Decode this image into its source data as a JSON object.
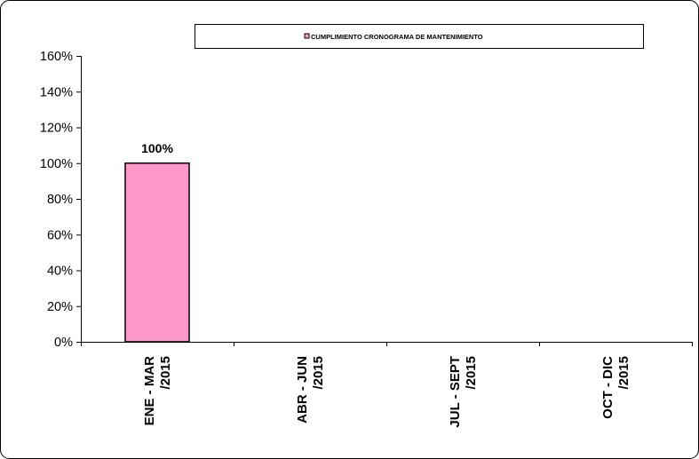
{
  "chart_data": {
    "type": "bar",
    "categories": [
      [
        "ENE - MAR",
        "/2015"
      ],
      [
        "ABR - JUN",
        "/2015"
      ],
      [
        "JUL - SEPT",
        "/2015"
      ],
      [
        "OCT - DIC",
        "/2015"
      ]
    ],
    "series": [
      {
        "name": "CUMPLIMIENTO CRONOGRAMA DE MANTENIMIENTO",
        "values": [
          1.0,
          null,
          null,
          null
        ],
        "data_labels": [
          "100%",
          "",
          "",
          ""
        ],
        "color": "#ff99cc"
      }
    ],
    "yticks": [
      "0%",
      "20%",
      "40%",
      "60%",
      "80%",
      "100%",
      "120%",
      "140%",
      "160%"
    ],
    "ylim": [
      0,
      1.6
    ],
    "y_format": "percent",
    "legend_position": "top",
    "grid": false,
    "title": "",
    "xlabel": "",
    "ylabel": ""
  }
}
